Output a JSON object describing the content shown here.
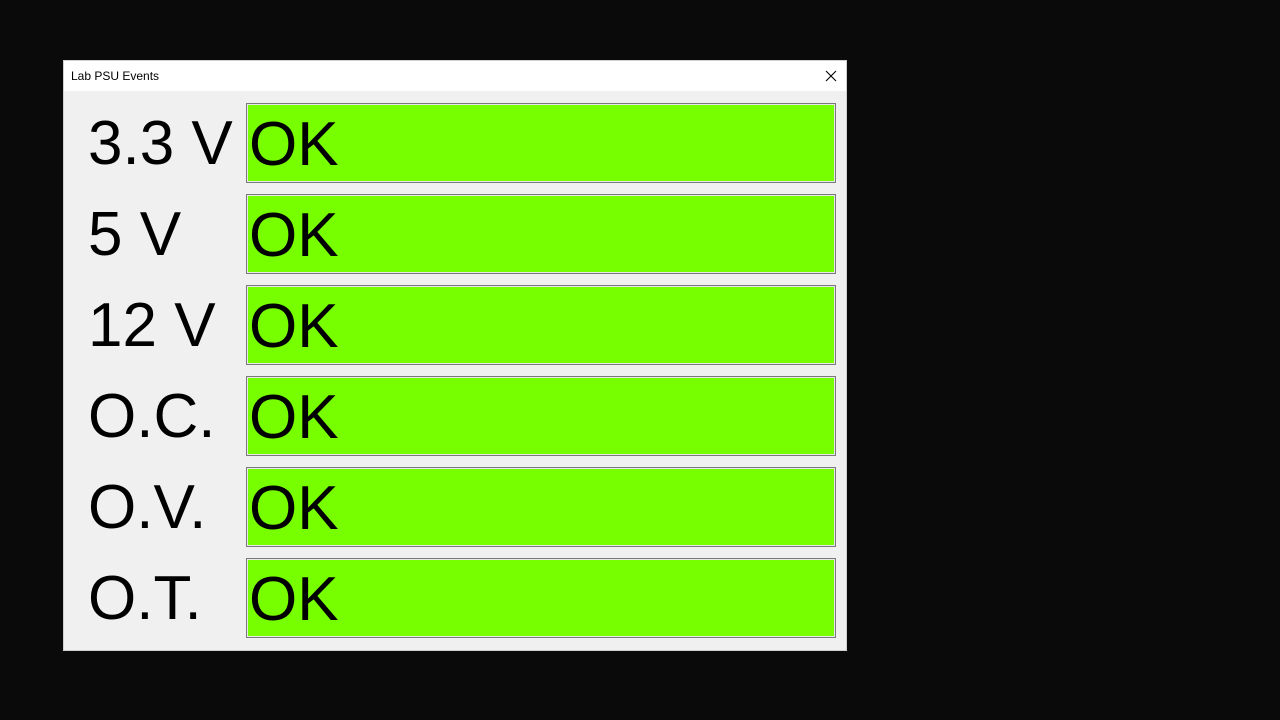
{
  "window": {
    "title": "Lab PSU Events"
  },
  "colors": {
    "status_ok": "#77ff00",
    "background": "#0a0a0a",
    "panel": "#f0f0f0"
  },
  "icons": {
    "close": "close-icon"
  },
  "rows": [
    {
      "label": "3.3 V",
      "status": "OK"
    },
    {
      "label": "5 V",
      "status": "OK"
    },
    {
      "label": "12 V",
      "status": "OK"
    },
    {
      "label": "O.C.",
      "status": "OK"
    },
    {
      "label": "O.V.",
      "status": "OK"
    },
    {
      "label": "O.T.",
      "status": "OK"
    }
  ]
}
